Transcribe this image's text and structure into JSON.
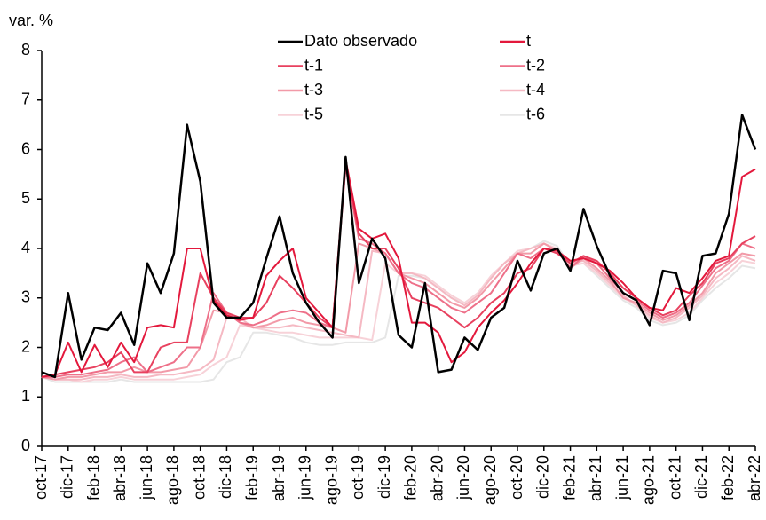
{
  "chart_data": {
    "type": "line",
    "y_label": "var. %",
    "categories": [
      "oct-17",
      null,
      "dic-17",
      null,
      "feb-18",
      null,
      "abr-18",
      null,
      "jun-18",
      null,
      "ago-18",
      null,
      "oct-18",
      null,
      "dic-18",
      null,
      "feb-19",
      null,
      "abr-19",
      null,
      "jun-19",
      null,
      "ago-19",
      null,
      "oct-19",
      null,
      "dic-19",
      null,
      "feb-20",
      null,
      "abr-20",
      null,
      "jun-20",
      null,
      "ago-20",
      null,
      "oct-20",
      null,
      "dic-20",
      null,
      "feb-21",
      null,
      "abr-21",
      null,
      "jun-21",
      null,
      "ago-21",
      null,
      "oct-21",
      null,
      "dic-21",
      null,
      "feb-22",
      null,
      "abr-22"
    ],
    "ylim": [
      0,
      8
    ],
    "yticks": [
      0,
      1,
      2,
      3,
      4,
      5,
      6,
      7,
      8
    ],
    "series": [
      {
        "name": "Dato observado",
        "color": "#000000",
        "values": [
          1.5,
          1.4,
          3.1,
          1.75,
          2.4,
          2.35,
          2.7,
          2.05,
          3.7,
          3.1,
          3.9,
          6.5,
          5.35,
          2.9,
          2.6,
          2.6,
          2.9,
          3.8,
          4.65,
          3.5,
          2.9,
          2.5,
          2.2,
          5.85,
          3.3,
          4.2,
          3.8,
          2.25,
          2.0,
          3.3,
          1.5,
          1.55,
          2.2,
          1.95,
          2.6,
          2.8,
          3.75,
          3.15,
          3.9,
          4.0,
          3.55,
          4.8,
          4.05,
          3.45,
          3.1,
          2.95,
          2.45,
          3.55,
          3.5,
          2.55,
          3.85,
          3.9,
          4.7,
          6.7,
          6.0
        ]
      },
      {
        "name": "t",
        "color": "#e3183c",
        "values": [
          1.4,
          1.45,
          2.1,
          1.5,
          2.05,
          1.6,
          2.1,
          1.7,
          2.4,
          2.45,
          2.4,
          4.0,
          4.0,
          2.95,
          2.65,
          2.55,
          2.6,
          3.45,
          3.75,
          4.0,
          3.0,
          2.7,
          2.4,
          5.8,
          4.4,
          4.2,
          4.3,
          3.8,
          2.5,
          2.5,
          2.3,
          1.7,
          1.9,
          2.4,
          2.7,
          2.95,
          3.3,
          3.7,
          4.0,
          3.95,
          3.75,
          3.8,
          3.7,
          3.55,
          3.3,
          3.0,
          2.8,
          2.75,
          3.2,
          3.1,
          3.4,
          3.75,
          3.85,
          5.45,
          5.6
        ]
      },
      {
        "name": "t-1",
        "color": "#e8415f",
        "values": [
          1.4,
          1.45,
          1.5,
          1.55,
          1.6,
          1.7,
          1.9,
          1.5,
          1.5,
          2.0,
          2.1,
          2.1,
          3.5,
          3.0,
          2.7,
          2.6,
          2.6,
          2.9,
          3.45,
          3.2,
          2.9,
          2.6,
          2.4,
          5.7,
          4.3,
          4.0,
          4.0,
          3.6,
          3.0,
          2.9,
          2.8,
          2.6,
          2.4,
          2.6,
          2.9,
          3.1,
          3.5,
          3.6,
          4.0,
          3.9,
          3.7,
          3.85,
          3.75,
          3.5,
          3.2,
          3.0,
          2.8,
          2.65,
          2.75,
          3.05,
          3.3,
          3.7,
          3.8,
          4.1,
          4.25
        ]
      },
      {
        "name": "t-2",
        "color": "#ee7089",
        "values": [
          1.4,
          1.4,
          1.45,
          1.45,
          1.5,
          1.55,
          1.7,
          1.8,
          1.5,
          1.6,
          1.7,
          2.0,
          2.0,
          3.1,
          2.7,
          2.5,
          2.45,
          2.55,
          2.7,
          2.75,
          2.7,
          2.5,
          2.4,
          5.65,
          4.2,
          4.1,
          3.9,
          3.5,
          3.3,
          3.2,
          3.0,
          2.8,
          2.7,
          2.9,
          3.1,
          3.5,
          3.9,
          3.8,
          4.0,
          3.95,
          3.6,
          3.85,
          3.7,
          3.4,
          3.1,
          2.95,
          2.75,
          2.6,
          2.7,
          2.9,
          3.25,
          3.6,
          3.75,
          4.1,
          4.0
        ]
      },
      {
        "name": "t-3",
        "color": "#f29aa8",
        "values": [
          1.4,
          1.35,
          1.4,
          1.4,
          1.45,
          1.5,
          1.5,
          1.6,
          1.5,
          1.5,
          1.55,
          1.6,
          2.0,
          2.75,
          2.7,
          2.5,
          2.4,
          2.45,
          2.55,
          2.6,
          2.5,
          2.45,
          2.4,
          2.3,
          4.1,
          4.0,
          3.9,
          3.5,
          3.4,
          3.3,
          3.1,
          2.9,
          2.8,
          3.0,
          3.3,
          3.6,
          3.9,
          3.9,
          4.1,
          3.95,
          3.6,
          3.8,
          3.6,
          3.35,
          3.0,
          2.9,
          2.7,
          2.55,
          2.65,
          2.85,
          3.1,
          3.5,
          3.7,
          3.9,
          3.85
        ]
      },
      {
        "name": "t-4",
        "color": "#f5b9c3",
        "values": [
          1.4,
          1.35,
          1.35,
          1.35,
          1.4,
          1.4,
          1.45,
          1.4,
          1.4,
          1.45,
          1.45,
          1.5,
          1.55,
          1.75,
          2.6,
          2.6,
          2.4,
          2.4,
          2.4,
          2.45,
          2.4,
          2.35,
          2.3,
          2.25,
          2.2,
          3.95,
          3.9,
          3.5,
          3.5,
          3.4,
          3.2,
          3.0,
          2.85,
          3.05,
          3.4,
          3.7,
          3.9,
          4.0,
          4.1,
          3.95,
          3.7,
          3.75,
          3.55,
          3.3,
          3.05,
          2.85,
          2.65,
          2.5,
          2.6,
          2.8,
          3.05,
          3.4,
          3.6,
          3.85,
          3.75
        ]
      },
      {
        "name": "t-5",
        "color": "#f7d2d8",
        "values": [
          1.4,
          1.35,
          1.35,
          1.3,
          1.35,
          1.35,
          1.4,
          1.35,
          1.35,
          1.35,
          1.35,
          1.4,
          1.45,
          1.65,
          1.8,
          2.45,
          2.4,
          2.35,
          2.3,
          2.3,
          2.25,
          2.2,
          2.2,
          2.2,
          2.2,
          2.15,
          3.7,
          3.5,
          3.5,
          3.45,
          3.25,
          3.05,
          2.9,
          3.1,
          3.45,
          3.7,
          3.95,
          4.0,
          4.1,
          4.0,
          3.65,
          3.7,
          3.5,
          3.25,
          3.0,
          2.85,
          2.6,
          2.5,
          2.55,
          2.7,
          3.0,
          3.3,
          3.5,
          3.75,
          3.7
        ]
      },
      {
        "name": "t-6",
        "color": "#e6e6e6",
        "values": [
          1.4,
          1.3,
          1.3,
          1.3,
          1.3,
          1.3,
          1.35,
          1.3,
          1.3,
          1.3,
          1.3,
          1.3,
          1.3,
          1.35,
          1.7,
          1.8,
          2.3,
          2.3,
          2.25,
          2.2,
          2.1,
          2.05,
          2.05,
          2.1,
          2.1,
          2.1,
          2.2,
          3.45,
          3.45,
          3.4,
          3.2,
          3.0,
          2.9,
          3.1,
          3.4,
          3.7,
          3.95,
          4.0,
          4.15,
          4.05,
          3.65,
          3.7,
          3.45,
          3.2,
          2.95,
          2.8,
          2.55,
          2.45,
          2.5,
          2.65,
          2.95,
          3.2,
          3.4,
          3.65,
          3.6
        ]
      }
    ]
  }
}
